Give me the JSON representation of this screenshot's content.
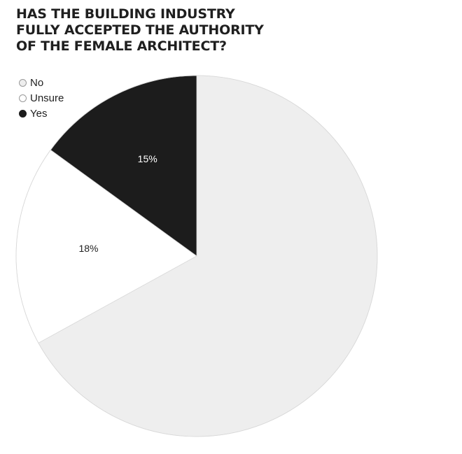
{
  "chart_data": {
    "type": "pie",
    "title_lines": [
      "HAS THE BUILDING INDUSTRY",
      "FULLY ACCEPTED THE AUTHORITY",
      "OF THE FEMALE ARCHITECT?"
    ],
    "legend_position": "top-left",
    "slices": [
      {
        "label": "No",
        "value": 67,
        "display": "",
        "color": "#eeeeee",
        "text_color": "#1f1f1f"
      },
      {
        "label": "Unsure",
        "value": 18,
        "display": "18%",
        "color": "#ffffff",
        "text_color": "#1f1f1f"
      },
      {
        "label": "Yes",
        "value": 15,
        "display": "15%",
        "color": "#1c1c1c",
        "text_color": "#ffffff"
      }
    ]
  }
}
